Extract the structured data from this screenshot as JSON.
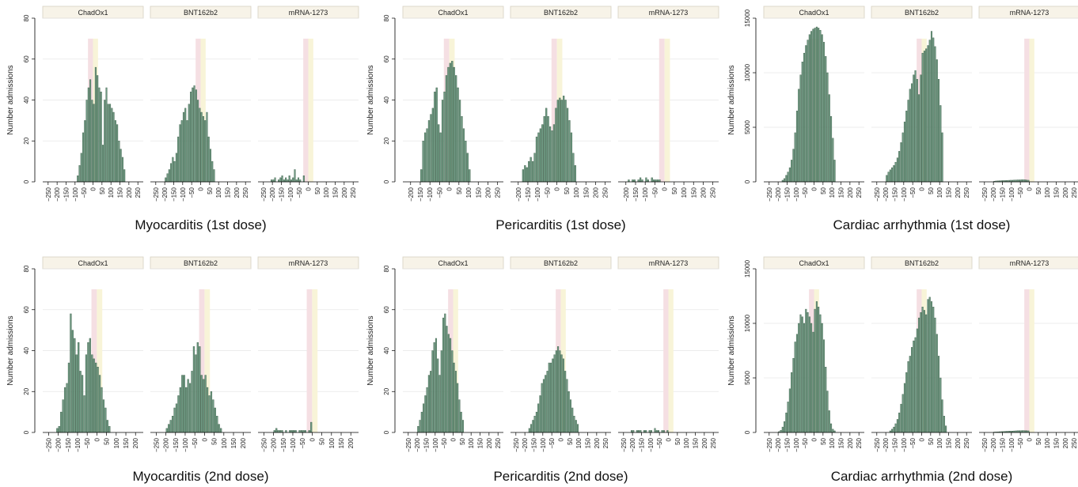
{
  "colors": {
    "bar": "#6e9b83",
    "bar_edge": "#3a5a45",
    "risk_pink": "#f5dfe3",
    "risk_yellow": "#f8f4d8",
    "strip_bg": "#f7f3e8"
  },
  "chart_data": [
    {
      "type": "bar",
      "title": "Myocarditis (1st dose)",
      "ylabel": "Number admissions",
      "ylim": [
        0,
        80
      ],
      "yticks": [
        0,
        20,
        40,
        60,
        80
      ],
      "grid": true,
      "panels": [
        {
          "label": "ChadOx1",
          "xlim": [
            -280,
            280
          ],
          "xticks": [
            -250,
            -200,
            -150,
            -100,
            -50,
            0,
            50,
            100,
            150,
            200,
            250
          ],
          "bin_start": -90,
          "bin_width": 10,
          "values": [
            3,
            8,
            14,
            24,
            30,
            40,
            46,
            50,
            40,
            38,
            56,
            52,
            46,
            44,
            18,
            40,
            46,
            38,
            38,
            36,
            34,
            30,
            28,
            20,
            16,
            12,
            6
          ]
        },
        {
          "label": "BNT162b2",
          "xlim": [
            -280,
            280
          ],
          "xticks": [
            -250,
            -200,
            -150,
            -100,
            -50,
            0,
            50,
            100,
            150,
            200,
            250
          ],
          "bin_start": -200,
          "bin_width": 10,
          "values": [
            2,
            4,
            6,
            9,
            12,
            10,
            14,
            22,
            28,
            30,
            34,
            36,
            30,
            38,
            44,
            46,
            47,
            45,
            40,
            36,
            34,
            32,
            30,
            34,
            22,
            16,
            10,
            6
          ]
        },
        {
          "label": "mRNA-1273",
          "xlim": [
            -280,
            280
          ],
          "xticks": [
            -250,
            -200,
            -150,
            -100,
            -50,
            0,
            50,
            100,
            150,
            200,
            250
          ],
          "bin_start": -220,
          "bin_width": 10,
          "values": [
            0,
            1,
            1,
            2,
            0,
            1,
            2,
            3,
            1,
            2,
            1,
            3,
            1,
            2,
            6,
            1,
            2,
            1,
            0,
            3
          ]
        }
      ]
    },
    {
      "type": "bar",
      "title": "Pericarditis (1st dose)",
      "ylabel": "Number admissions",
      "ylim": [
        0,
        80
      ],
      "yticks": [
        0,
        20,
        40,
        60,
        80
      ],
      "grid": true,
      "panels": [
        {
          "label": "ChadOx1",
          "xlim": [
            -240,
            280
          ],
          "xticks": [
            -200,
            -150,
            -100,
            -50,
            0,
            50,
            100,
            150,
            200,
            250
          ],
          "bin_start": -150,
          "bin_width": 10,
          "values": [
            6,
            20,
            24,
            26,
            30,
            33,
            36,
            44,
            46,
            28,
            24,
            40,
            44,
            52,
            56,
            58,
            59,
            56,
            52,
            46,
            40,
            32,
            26,
            20,
            14,
            6
          ]
        },
        {
          "label": "BNT162b2",
          "xlim": [
            -240,
            280
          ],
          "xticks": [
            -200,
            -150,
            -100,
            -50,
            0,
            50,
            100,
            150,
            200,
            250
          ],
          "bin_start": -180,
          "bin_width": 10,
          "values": [
            6,
            8,
            7,
            10,
            12,
            10,
            14,
            22,
            24,
            26,
            28,
            32,
            36,
            32,
            27,
            25,
            28,
            36,
            40,
            41,
            40,
            42,
            40,
            36,
            30,
            24,
            14,
            8
          ]
        },
        {
          "label": "mRNA-1273",
          "xlim": [
            -240,
            280
          ],
          "xticks": [
            -200,
            -150,
            -100,
            -50,
            0,
            50,
            100,
            150,
            200,
            250
          ],
          "bin_start": -200,
          "bin_width": 10,
          "values": [
            0,
            1,
            0,
            1,
            1,
            0,
            1,
            2,
            1,
            0,
            2,
            1,
            0,
            2,
            1,
            1,
            1,
            1
          ]
        }
      ]
    },
    {
      "type": "bar",
      "title": "Cardiac arrhythmia (1st dose)",
      "ylabel": "Number admissions",
      "ylim": [
        0,
        15000
      ],
      "yticks": [
        0,
        5000,
        10000,
        15000
      ],
      "grid": true,
      "panels": [
        {
          "label": "ChadOx1",
          "xlim": [
            -280,
            280
          ],
          "xticks": [
            -250,
            -200,
            -150,
            -100,
            -50,
            0,
            50,
            100,
            150,
            200,
            250
          ],
          "bin_start": -180,
          "bin_width": 10,
          "values": [
            150,
            300,
            600,
            900,
            1300,
            2000,
            3000,
            4500,
            6500,
            8500,
            9800,
            11000,
            11800,
            12500,
            13000,
            13500,
            13800,
            14000,
            14100,
            14200,
            14100,
            13900,
            13500,
            12800,
            11500,
            10000,
            8000,
            6000,
            4000,
            2000
          ]
        },
        {
          "label": "BNT162b2",
          "xlim": [
            -280,
            280
          ],
          "xticks": [
            -250,
            -200,
            -150,
            -100,
            -50,
            0,
            50,
            100,
            150,
            200,
            250
          ],
          "bin_start": -200,
          "bin_width": 10,
          "values": [
            600,
            900,
            1100,
            1300,
            1500,
            1800,
            2200,
            2800,
            3600,
            4500,
            5500,
            6500,
            7500,
            8500,
            9000,
            9800,
            10200,
            9400,
            8000,
            9800,
            11800,
            12000,
            12200,
            12500,
            13000,
            13800,
            13200,
            12400,
            11200,
            9400,
            7000,
            4500
          ]
        },
        {
          "label": "mRNA-1273",
          "xlim": [
            -280,
            280
          ],
          "xticks": [
            -250,
            -200,
            -150,
            -100,
            -50,
            0,
            50,
            100,
            150,
            200,
            250
          ],
          "bin_start": -200,
          "bin_width": 10,
          "values": [
            60,
            80,
            90,
            100,
            110,
            120,
            120,
            130,
            140,
            150,
            150,
            160,
            170,
            180,
            180,
            190,
            200,
            190,
            170,
            150
          ]
        }
      ]
    },
    {
      "type": "bar",
      "title": "Myocarditis (2nd dose)",
      "ylabel": "Number admissions",
      "ylim": [
        0,
        80
      ],
      "yticks": [
        0,
        20,
        40,
        60,
        80
      ],
      "grid": true,
      "panels": [
        {
          "label": "ChadOx1",
          "xlim": [
            -280,
            240
          ],
          "xticks": [
            -250,
            -200,
            -150,
            -100,
            -50,
            0,
            50,
            100,
            150,
            200
          ],
          "bin_start": -210,
          "bin_width": 10,
          "values": [
            2,
            3,
            10,
            16,
            22,
            24,
            34,
            58,
            50,
            46,
            38,
            44,
            30,
            28,
            18,
            38,
            44,
            46,
            38,
            36,
            34,
            32,
            28,
            22,
            16,
            12,
            6,
            3
          ]
        },
        {
          "label": "BNT162b2",
          "xlim": [
            -280,
            240
          ],
          "xticks": [
            -250,
            -200,
            -150,
            -100,
            -50,
            0,
            50,
            100,
            150,
            200
          ],
          "bin_start": -200,
          "bin_width": 10,
          "values": [
            2,
            4,
            6,
            8,
            12,
            14,
            18,
            22,
            28,
            28,
            22,
            26,
            24,
            30,
            42,
            38,
            44,
            42,
            28,
            26,
            28,
            22,
            18,
            20,
            16,
            12,
            8,
            4,
            2
          ]
        },
        {
          "label": "mRNA-1273",
          "xlim": [
            -280,
            240
          ],
          "xticks": [
            -250,
            -200,
            -150,
            -100,
            -50,
            0,
            50,
            100,
            150,
            200
          ],
          "bin_start": -210,
          "bin_width": 10,
          "values": [
            0,
            1,
            2,
            1,
            1,
            1,
            0,
            1,
            0,
            1,
            1,
            1,
            1,
            0,
            1,
            1,
            1,
            1,
            0,
            1,
            5
          ]
        }
      ]
    },
    {
      "type": "bar",
      "title": "Pericarditis (2nd dose)",
      "ylabel": "Number admissions",
      "ylim": [
        0,
        80
      ],
      "yticks": [
        0,
        20,
        40,
        60,
        80
      ],
      "grid": true,
      "panels": [
        {
          "label": "ChadOx1",
          "xlim": [
            -280,
            280
          ],
          "xticks": [
            -250,
            -200,
            -150,
            -100,
            -50,
            0,
            50,
            100,
            150,
            200,
            250
          ],
          "bin_start": -200,
          "bin_width": 10,
          "values": [
            3,
            6,
            10,
            14,
            18,
            22,
            28,
            30,
            40,
            44,
            46,
            36,
            28,
            40,
            56,
            58,
            52,
            48,
            46,
            40,
            34,
            30,
            24,
            16,
            10,
            6
          ]
        },
        {
          "label": "BNT162b2",
          "xlim": [
            -280,
            280
          ],
          "xticks": [
            -250,
            -200,
            -150,
            -100,
            -50,
            0,
            50,
            100,
            150,
            200,
            250
          ],
          "bin_start": -180,
          "bin_width": 10,
          "values": [
            2,
            4,
            6,
            8,
            10,
            14,
            18,
            24,
            26,
            28,
            30,
            34,
            34,
            36,
            38,
            40,
            42,
            40,
            38,
            36,
            30,
            26,
            20,
            16,
            12,
            8,
            6,
            4
          ]
        },
        {
          "label": "mRNA-1273",
          "xlim": [
            -280,
            280
          ],
          "xticks": [
            -250,
            -200,
            -150,
            -100,
            -50,
            0,
            50,
            100,
            150,
            200,
            250
          ],
          "bin_start": -220,
          "bin_width": 10,
          "values": [
            0,
            1,
            1,
            0,
            1,
            1,
            1,
            0,
            1,
            1,
            0,
            1,
            1,
            0,
            2,
            1,
            1,
            0,
            1,
            1,
            0,
            1
          ]
        }
      ]
    },
    {
      "type": "bar",
      "title": "Cardiac arrhythmia (2nd dose)",
      "ylabel": "Number admissions",
      "ylim": [
        0,
        15000
      ],
      "yticks": [
        0,
        5000,
        10000,
        15000
      ],
      "grid": true,
      "panels": [
        {
          "label": "ChadOx1",
          "xlim": [
            -280,
            280
          ],
          "xticks": [
            -250,
            -200,
            -150,
            -100,
            -50,
            0,
            50,
            100,
            150,
            200,
            250
          ],
          "bin_start": -200,
          "bin_width": 10,
          "values": [
            80,
            200,
            500,
            1000,
            1800,
            2800,
            4000,
            5500,
            6800,
            8300,
            9000,
            10000,
            10800,
            10600,
            10000,
            11300,
            11000,
            10600,
            10000,
            9200,
            11300,
            12000,
            11500,
            10800,
            10000,
            8500,
            6000,
            3800,
            2000,
            800,
            300,
            150
          ]
        },
        {
          "label": "BNT162b2",
          "xlim": [
            -280,
            280
          ],
          "xticks": [
            -250,
            -200,
            -150,
            -100,
            -50,
            0,
            50,
            100,
            150,
            200,
            250
          ],
          "bin_start": -180,
          "bin_width": 10,
          "values": [
            150,
            300,
            500,
            800,
            1200,
            1800,
            2600,
            3500,
            4500,
            5500,
            6500,
            7000,
            7800,
            8400,
            8700,
            9500,
            10500,
            11000,
            11500,
            11200,
            10800,
            12200,
            12400,
            12000,
            11500,
            10500,
            9000,
            7000,
            5000,
            3000,
            1500,
            600
          ]
        },
        {
          "label": "mRNA-1273",
          "xlim": [
            -280,
            280
          ],
          "xticks": [
            -250,
            -200,
            -150,
            -100,
            -50,
            0,
            50,
            100,
            150,
            200,
            250
          ],
          "bin_start": -200,
          "bin_width": 10,
          "values": [
            40,
            50,
            60,
            70,
            80,
            90,
            100,
            110,
            120,
            130,
            130,
            140,
            150,
            160,
            160,
            170,
            180,
            170,
            160,
            150
          ]
        }
      ]
    }
  ]
}
